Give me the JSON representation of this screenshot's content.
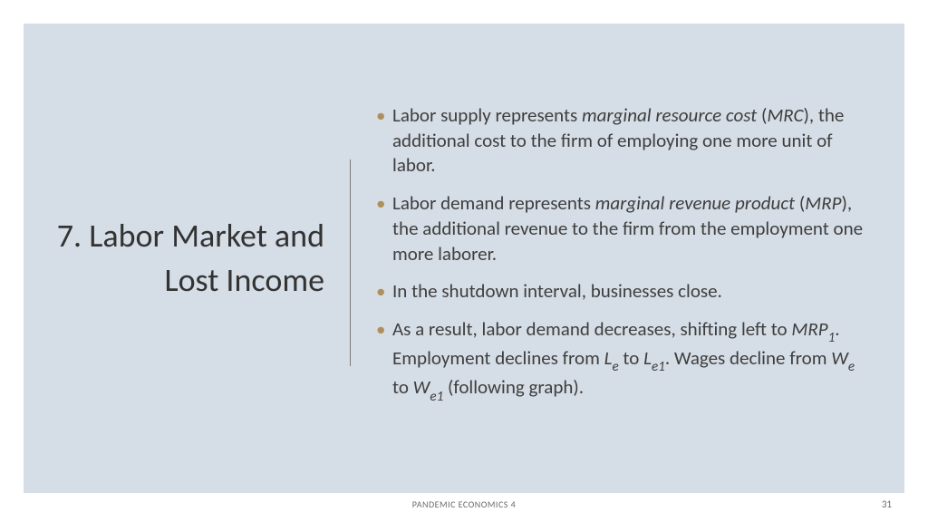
{
  "colors": {
    "page_bg": "#ffffff",
    "slide_bg": "#d5dde6",
    "title_text": "#333333",
    "body_text": "#3e3e3e",
    "bullet_marker": "#b08f5a",
    "divider": "#7a7a7a",
    "footer_text": "#6a6a6a"
  },
  "typography": {
    "title_fontsize_pt": 27,
    "body_fontsize_pt": 16,
    "footer_fontsize_pt": 8
  },
  "title": "7. Labor Market and Lost Income",
  "bullets": {
    "b0": {
      "pre": "Labor supply represents ",
      "em1": "marginal resource cost",
      "mid1": " (",
      "em2": "MRC",
      "post": "), the additional cost to the firm of employing one more unit of labor."
    },
    "b1": {
      "pre": "Labor demand represents ",
      "em1": "marginal revenue product",
      "mid1": " (",
      "em2": "MRP",
      "post": "), the additional revenue to the firm from the employment one more laborer."
    },
    "b2": {
      "text": "In the shutdown interval, businesses close."
    },
    "b3": {
      "p1": "As a result, labor demand decreases, shifting left to ",
      "v1": "MRP",
      "s1": "1",
      "p2": ".  Employment declines from ",
      "v2": "L",
      "s2": "e",
      "p3": " to ",
      "v3": "L",
      "s3": "e1",
      "p4": ".  Wages decline from ",
      "v4": "W",
      "s4": "e",
      "p5": " to ",
      "v5": "W",
      "s5": "e1",
      "p6": " (following graph)."
    }
  },
  "footer": {
    "center": "PANDEMIC ECONOMICS 4",
    "page_number": "31"
  }
}
